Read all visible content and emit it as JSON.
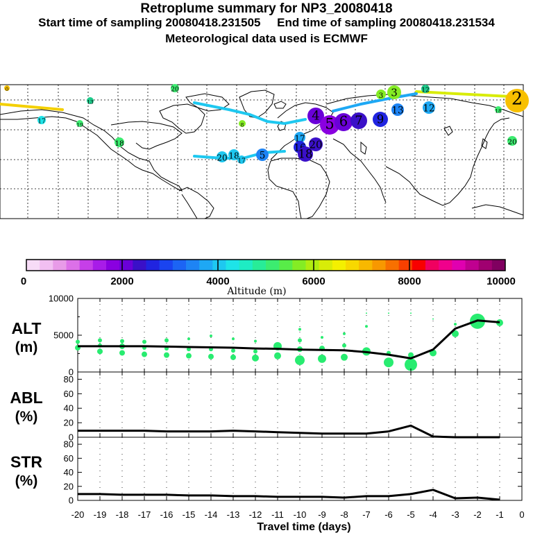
{
  "header": {
    "title": "Retroplume summary for NP3_20080418",
    "sampling_line": "Start time of sampling 20080418.231505     End time of sampling 20080418.231534",
    "met_line": "Meteorological data used is ECMWF"
  },
  "colorbar": {
    "label": "Altitude (m)",
    "tick_labels": [
      "0",
      "2000",
      "4000",
      "6000",
      "8000",
      "10000"
    ],
    "colors": [
      "#f7dcf7",
      "#f2bff2",
      "#e89be8",
      "#dc70e8",
      "#c63fe8",
      "#a81ce8",
      "#8a00e0",
      "#6a00d8",
      "#3a10c8",
      "#2024e0",
      "#1a44f0",
      "#1c64f4",
      "#1e84f4",
      "#1ea8f4",
      "#1ec8f0",
      "#1ee4e8",
      "#1eecc4",
      "#28ec98",
      "#3cec70",
      "#58ec48",
      "#84ec24",
      "#b0ec10",
      "#d8ec08",
      "#f4f000",
      "#f8d800",
      "#f8b800",
      "#f89800",
      "#f87000",
      "#f84000",
      "#f80000",
      "#f00060",
      "#f0008c",
      "#e000b0",
      "#c00090",
      "#a00070",
      "#800060"
    ]
  },
  "map": {
    "labels": [
      {
        "t": "0",
        "x": 10,
        "y": 127,
        "r": 4,
        "c": "#f4c000"
      },
      {
        "t": "20",
        "x": 252,
        "y": 127,
        "r": 6,
        "c": "#3cec70"
      },
      {
        "t": "3",
        "x": 549,
        "y": 136,
        "r": 7,
        "c": "#84ec24"
      },
      {
        "t": "3",
        "x": 568,
        "y": 133,
        "r": 10,
        "c": "#84ec24"
      },
      {
        "t": "12",
        "x": 613,
        "y": 128,
        "r": 6,
        "c": "#1ecc8c"
      },
      {
        "t": "2",
        "x": 745,
        "y": 145,
        "r": 17,
        "c": "#f8c000"
      },
      {
        "t": "13",
        "x": 130,
        "y": 145,
        "r": 5,
        "c": "#1ecc8c"
      },
      {
        "t": "17",
        "x": 60,
        "y": 173,
        "r": 6,
        "c": "#1ee4e8"
      },
      {
        "t": "19",
        "x": 115,
        "y": 178,
        "r": 5,
        "c": "#3cec70"
      },
      {
        "t": "18",
        "x": 718,
        "y": 158,
        "r": 5,
        "c": "#3cec70"
      },
      {
        "t": "4",
        "x": 455,
        "y": 167,
        "r": 12,
        "c": "#6a00d8"
      },
      {
        "t": "5",
        "x": 475,
        "y": 180,
        "r": 14,
        "c": "#8a00e0"
      },
      {
        "t": "6",
        "x": 495,
        "y": 176,
        "r": 13,
        "c": "#6a00d8"
      },
      {
        "t": "7",
        "x": 517,
        "y": 174,
        "r": 12,
        "c": "#3a10c8"
      },
      {
        "t": "9",
        "x": 548,
        "y": 172,
        "r": 11,
        "c": "#2024e0"
      },
      {
        "t": "13",
        "x": 573,
        "y": 158,
        "r": 9,
        "c": "#1e84f4"
      },
      {
        "t": "12",
        "x": 618,
        "y": 155,
        "r": 9,
        "c": "#1ea8f4"
      },
      {
        "t": "17",
        "x": 432,
        "y": 198,
        "r": 8,
        "c": "#1ea8f4"
      },
      {
        "t": "20",
        "x": 455,
        "y": 208,
        "r": 10,
        "c": "#3a10c8"
      },
      {
        "t": "16",
        "x": 432,
        "y": 212,
        "r": 9,
        "c": "#2024e0"
      },
      {
        "t": "18",
        "x": 440,
        "y": 222,
        "r": 11,
        "c": "#3a10c8"
      },
      {
        "t": "18",
        "x": 172,
        "y": 205,
        "r": 7,
        "c": "#3cec70"
      },
      {
        "t": "20",
        "x": 320,
        "y": 226,
        "r": 8,
        "c": "#1ec8f0"
      },
      {
        "t": "18",
        "x": 337,
        "y": 223,
        "r": 8,
        "c": "#1ec8f0"
      },
      {
        "t": "17",
        "x": 348,
        "y": 230,
        "r": 6,
        "c": "#1ec8f0"
      },
      {
        "t": "5",
        "x": 378,
        "y": 223,
        "r": 9,
        "c": "#1e84f4"
      },
      {
        "t": "20",
        "x": 738,
        "y": 203,
        "r": 7,
        "c": "#3cec70"
      },
      {
        "t": "8",
        "x": 349,
        "y": 178,
        "r": 5,
        "c": "#84ec24"
      }
    ]
  },
  "chart_data": [
    {
      "type": "scatter",
      "title": "ALT (m)",
      "label_line1": "ALT",
      "label_line2": "(m)",
      "x": [
        -20,
        -19,
        -18,
        -17,
        -16,
        -15,
        -14,
        -13,
        -12,
        -11,
        -10,
        -9,
        -8,
        -7,
        -6,
        -5,
        -4,
        -3,
        -2,
        -1
      ],
      "line_values": [
        3500,
        3500,
        3500,
        3500,
        3450,
        3400,
        3350,
        3300,
        3200,
        3150,
        3050,
        3000,
        2950,
        2700,
        2350,
        1850,
        3050,
        5900,
        7000,
        6750
      ],
      "ylim": [
        0,
        10000
      ],
      "yticks": [
        0,
        5000,
        10000
      ],
      "ytick_labels": [
        "0",
        "5000",
        "10000"
      ],
      "point_color": "#28ec70",
      "points": [
        [
          -20,
          3300,
          4
        ],
        [
          -20,
          4100,
          3
        ],
        [
          -19,
          2800,
          4
        ],
        [
          -19,
          3600,
          3
        ],
        [
          -19,
          4300,
          3
        ],
        [
          -18,
          2600,
          4
        ],
        [
          -18,
          3500,
          4
        ],
        [
          -18,
          4200,
          3
        ],
        [
          -17,
          2400,
          4
        ],
        [
          -17,
          3300,
          3
        ],
        [
          -17,
          4100,
          3
        ],
        [
          -16,
          2300,
          4
        ],
        [
          -16,
          3200,
          3
        ],
        [
          -16,
          4300,
          3
        ],
        [
          -15,
          2200,
          4
        ],
        [
          -15,
          3100,
          3
        ],
        [
          -15,
          4500,
          2
        ],
        [
          -14,
          2100,
          4
        ],
        [
          -14,
          3100,
          3
        ],
        [
          -14,
          4900,
          2
        ],
        [
          -13,
          2000,
          4
        ],
        [
          -13,
          2900,
          3
        ],
        [
          -13,
          4500,
          2
        ],
        [
          -12,
          1900,
          5
        ],
        [
          -12,
          2800,
          3
        ],
        [
          -12,
          4200,
          2
        ],
        [
          -11,
          2200,
          5
        ],
        [
          -11,
          3500,
          6
        ],
        [
          -10,
          1600,
          7
        ],
        [
          -10,
          3100,
          4
        ],
        [
          -10,
          4300,
          3
        ],
        [
          -10,
          5800,
          2
        ],
        [
          -9,
          1800,
          6
        ],
        [
          -9,
          3200,
          4
        ],
        [
          -9,
          4700,
          2
        ],
        [
          -8,
          2000,
          5
        ],
        [
          -8,
          3600,
          3
        ],
        [
          -8,
          5200,
          2
        ],
        [
          -7,
          2800,
          6
        ],
        [
          -7,
          6200,
          2
        ],
        [
          -7,
          8000,
          1
        ],
        [
          -6,
          1300,
          7
        ],
        [
          -6,
          2600,
          3
        ],
        [
          -6,
          8000,
          1
        ],
        [
          -5,
          1000,
          9
        ],
        [
          -5,
          2300,
          4
        ],
        [
          -5,
          8000,
          1
        ],
        [
          -4,
          2600,
          5
        ],
        [
          -4,
          7200,
          1
        ],
        [
          -3,
          5200,
          5
        ],
        [
          -3,
          6500,
          2
        ],
        [
          -2,
          6900,
          11
        ],
        [
          -1,
          6700,
          5
        ]
      ]
    },
    {
      "type": "line",
      "title": "ABL (%)",
      "label_line1": "ABL",
      "label_line2": "(%)",
      "x": [
        -20,
        -19,
        -18,
        -17,
        -16,
        -15,
        -14,
        -13,
        -12,
        -11,
        -10,
        -9,
        -8,
        -7,
        -6,
        -5,
        -4,
        -3,
        -2,
        -1
      ],
      "values": [
        9,
        9,
        9,
        9,
        8,
        8,
        8,
        9,
        8,
        7,
        6,
        5,
        5,
        5,
        8,
        16,
        1,
        0,
        0,
        0
      ],
      "ylim": [
        0,
        90
      ],
      "yticks": [
        0,
        20,
        40,
        60,
        80
      ],
      "ytick_labels": [
        "0",
        "20",
        "40",
        "60",
        "80"
      ]
    },
    {
      "type": "line",
      "title": "STR (%)",
      "label_line1": "STR",
      "label_line2": "(%)",
      "x": [
        -20,
        -19,
        -18,
        -17,
        -16,
        -15,
        -14,
        -13,
        -12,
        -11,
        -10,
        -9,
        -8,
        -7,
        -6,
        -5,
        -4,
        -3,
        -2,
        -1
      ],
      "values": [
        9,
        9,
        8,
        8,
        8,
        7,
        7,
        6,
        6,
        5,
        5,
        5,
        4,
        6,
        6,
        9,
        15,
        3,
        4,
        1
      ],
      "ylim": [
        0,
        90
      ],
      "yticks": [
        0,
        20,
        40,
        60,
        80
      ],
      "ytick_labels": [
        "0",
        "20",
        "40",
        "60",
        "80"
      ],
      "xlabel": "Travel time (days)",
      "xticks": [
        -20,
        -19,
        -18,
        -17,
        -16,
        -15,
        -14,
        -13,
        -12,
        -11,
        -10,
        -9,
        -8,
        -7,
        -6,
        -5,
        -4,
        -3,
        -2,
        -1,
        0
      ],
      "xtick_labels": [
        "-20",
        "-19",
        "-18",
        "-17",
        "-16",
        "-15",
        "-14",
        "-13",
        "-12",
        "-11",
        "-10",
        "-9",
        "-8",
        "-7",
        "-6",
        "-5",
        "-4",
        "-3",
        "-2",
        "-1",
        "0"
      ]
    }
  ]
}
